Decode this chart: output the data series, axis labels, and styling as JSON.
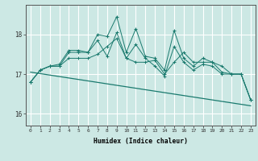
{
  "xlabel": "Humidex (Indice chaleur)",
  "background_color": "#cce8e4",
  "grid_color": "#ffffff",
  "line_color": "#1a7a6e",
  "x": [
    0,
    1,
    2,
    3,
    4,
    5,
    6,
    7,
    8,
    9,
    10,
    11,
    12,
    13,
    14,
    15,
    16,
    17,
    18,
    19,
    20,
    21,
    22,
    23
  ],
  "series1": [
    16.8,
    17.1,
    17.2,
    17.2,
    17.4,
    17.4,
    17.4,
    17.5,
    17.7,
    17.9,
    17.4,
    17.3,
    17.3,
    17.35,
    17.0,
    17.3,
    17.55,
    17.3,
    17.3,
    17.3,
    17.2,
    17.0,
    17.0,
    16.35
  ],
  "series2": [
    16.8,
    17.1,
    17.2,
    17.2,
    17.55,
    17.55,
    17.55,
    17.85,
    17.45,
    18.05,
    17.4,
    17.75,
    17.4,
    17.2,
    16.95,
    17.7,
    17.3,
    17.1,
    17.25,
    17.2,
    17.0,
    17.0,
    17.0,
    16.35
  ],
  "series3": [
    16.8,
    17.1,
    17.2,
    17.25,
    17.6,
    17.6,
    17.55,
    18.0,
    17.95,
    18.45,
    17.55,
    18.15,
    17.45,
    17.4,
    17.1,
    18.1,
    17.4,
    17.2,
    17.4,
    17.3,
    17.05,
    17.0,
    17.0,
    16.35
  ],
  "series4_x": [
    0,
    23
  ],
  "series4_y": [
    17.05,
    16.2
  ],
  "yticks": [
    16,
    17,
    18
  ],
  "ylim": [
    15.7,
    18.75
  ],
  "xlim": [
    -0.5,
    23.5
  ]
}
